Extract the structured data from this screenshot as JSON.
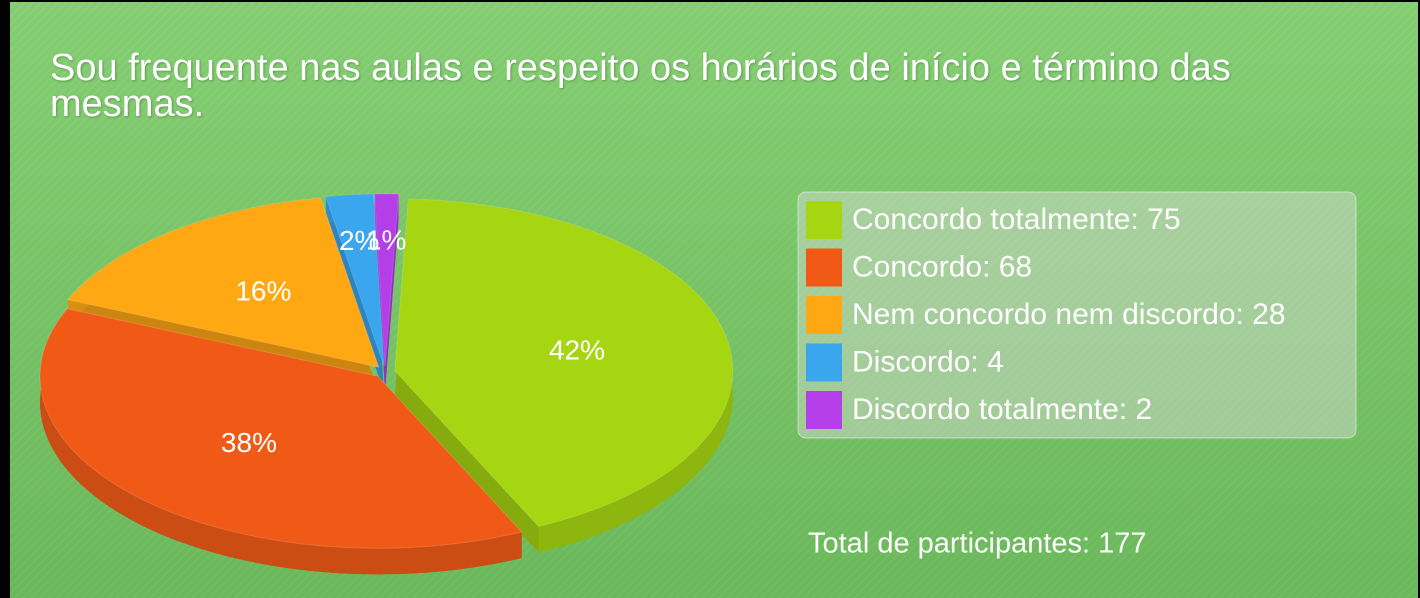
{
  "chart_data": {
    "type": "pie3d",
    "title": "Sou frequente nas aulas e respeito os horários de início e término das mesmas.",
    "categories": [
      "Concordo totalmente",
      "Concordo",
      "Nem concordo nem discordo",
      "Discordo",
      "Discordo totalmente"
    ],
    "values": [
      75,
      68,
      28,
      4,
      2
    ],
    "value_labels": [
      "42%",
      "38%",
      "16%",
      "2%",
      "1%"
    ],
    "legend_labels": [
      "Concordo totalmente: 75",
      "Concordo: 68",
      "Nem concordo nem discordo: 28",
      "Discordo: 4",
      "Discordo totalmente: 2"
    ],
    "colors": [
      "#a6d612",
      "#f05a16",
      "#ffa814",
      "#3aa6ee",
      "#b43ee8"
    ],
    "total_label": "Total de participantes: 177",
    "legend": "right"
  }
}
